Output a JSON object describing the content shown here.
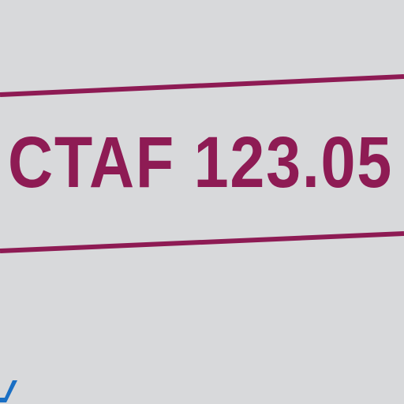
{
  "frequency_box": {
    "text": "CTAF 123.05",
    "color": "#8e1b54"
  },
  "colors": {
    "background": "#d8d9db",
    "box_line": "#8e1b54",
    "fragment": "#1a6fc4"
  }
}
